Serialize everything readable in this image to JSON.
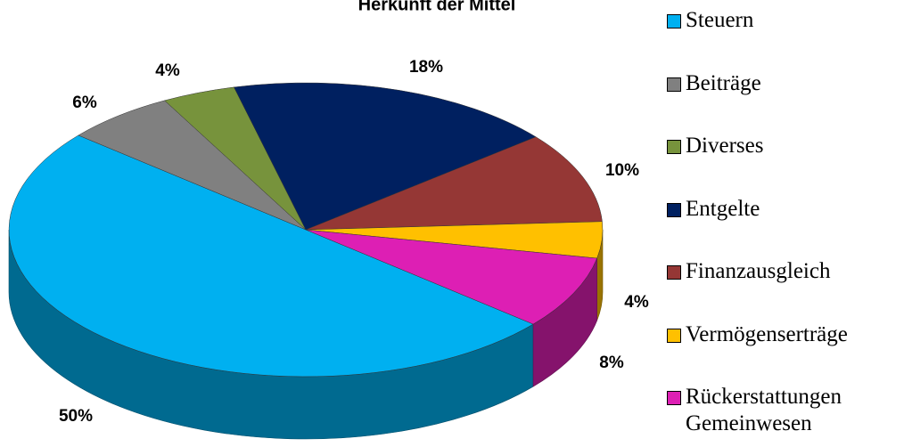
{
  "chart_data": {
    "type": "pie",
    "title": "Herkunft der Mittel",
    "categories": [
      "Steuern",
      "Beiträge",
      "Diverses",
      "Entgelte",
      "Finanzausgleich",
      "Vermögenserträge",
      "Rückerstattungen Gemeinwesen"
    ],
    "values": [
      50,
      6,
      4,
      18,
      10,
      4,
      8
    ],
    "value_labels": [
      "50%",
      "6%",
      "4%",
      "18%",
      "10%",
      "4%",
      "8%"
    ],
    "colors": [
      "#00B0F0",
      "#808080",
      "#77933C",
      "#002060",
      "#953735",
      "#FFC000",
      "#DD1FB4"
    ],
    "legend": "right"
  }
}
